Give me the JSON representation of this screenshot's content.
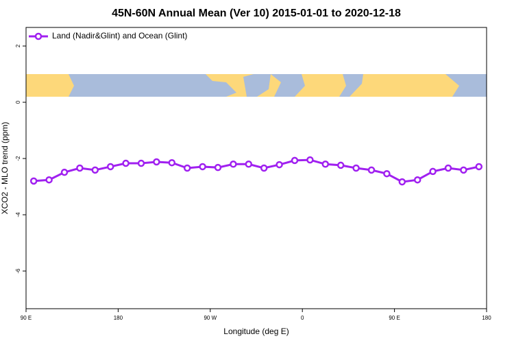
{
  "chart_data": {
    "type": "line",
    "title": "45N-60N Annual Mean (Ver 10)   2015-01-01 to 2020-12-18",
    "x_label": "Longitude (deg E)",
    "y_label": "XCO2 - MLO trend (ppm)",
    "x": [
      97.5,
      112.5,
      127.5,
      142.5,
      157.5,
      172.5,
      187.5,
      202.5,
      217.5,
      232.5,
      247.5,
      262.5,
      277.5,
      292.5,
      307.5,
      322.5,
      337.5,
      352.5,
      367.5,
      382.5,
      397.5,
      412.5,
      427.5,
      442.5,
      457.5,
      472.5,
      487.5,
      502.5,
      517.5,
      532.5
    ],
    "series": [
      {
        "name": "Land (Nadir&Glint) and Ocean (Glint)",
        "color": "#a020f0",
        "values": [
          -2.8,
          -2.76,
          -2.49,
          -2.34,
          -2.41,
          -2.29,
          -2.17,
          -2.17,
          -2.12,
          -2.15,
          -2.34,
          -2.29,
          -2.32,
          -2.2,
          -2.2,
          -2.34,
          -2.22,
          -2.07,
          -2.05,
          -2.2,
          -2.24,
          -2.34,
          -2.41,
          -2.54,
          -2.83,
          -2.76,
          -2.46,
          -2.34,
          -2.41,
          -2.29
        ]
      }
    ],
    "xlim": [
      90,
      540
    ],
    "xticks": [
      {
        "value": 90,
        "label": "90 E"
      },
      180,
      {
        "value": 270,
        "label": "90 W"
      },
      {
        "value": 360,
        "label": "0"
      },
      {
        "value": 450,
        "label": "90 E"
      },
      {
        "value": 540,
        "label": "180"
      }
    ],
    "ylim": [
      -7.34,
      2.66
    ],
    "yticks": [
      -6,
      -4,
      -2,
      0,
      2
    ],
    "legend": "top-left"
  }
}
